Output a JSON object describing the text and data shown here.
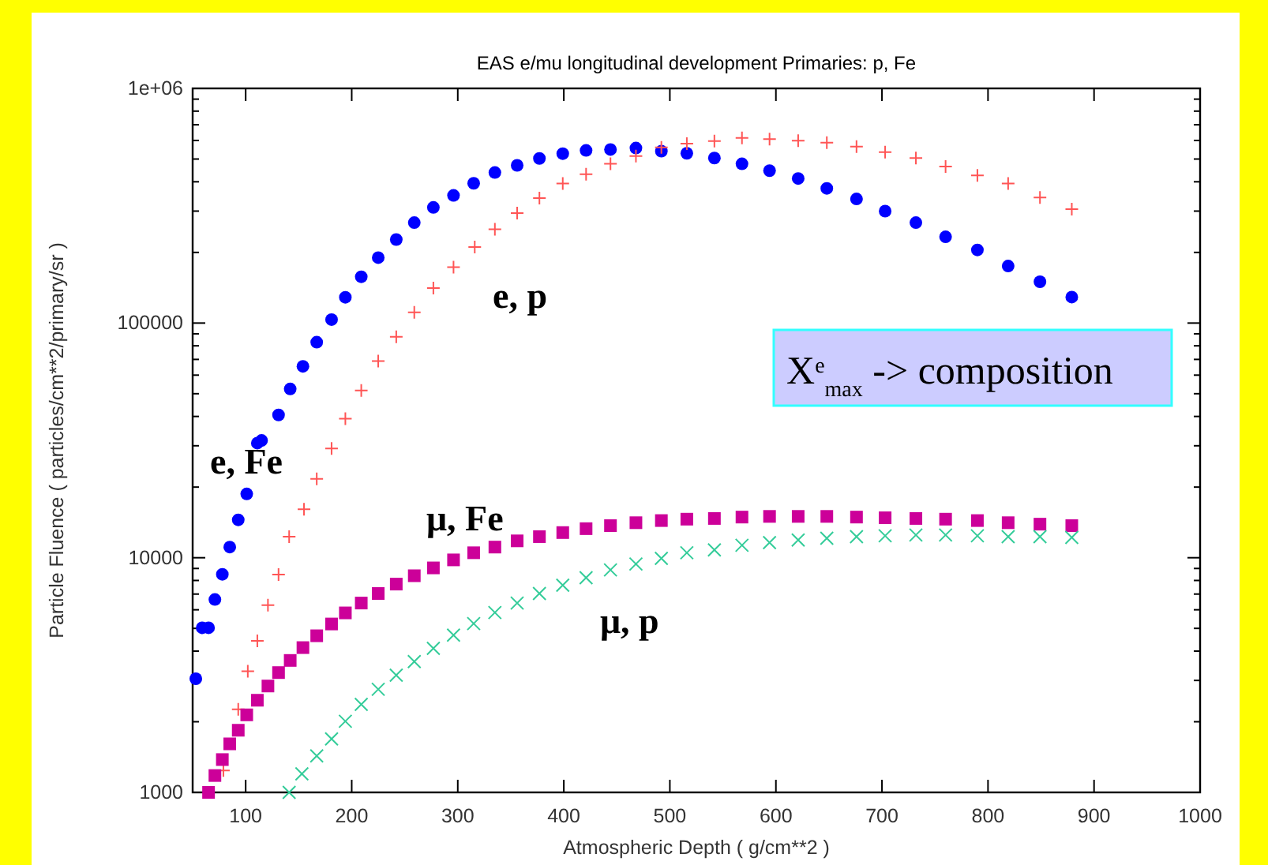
{
  "chart_data": {
    "type": "scatter",
    "title": "EAS e/mu longitudinal development  Primaries:  p, Fe",
    "xlabel": "Atmospheric Depth   ( g/cm**2 )",
    "ylabel": "Particle Fluence ( particles/cm**2/primary/sr )",
    "log": "y",
    "xlim": [
      50,
      1000
    ],
    "ylim": [
      1000,
      1000000
    ],
    "xticks": [
      100,
      200,
      300,
      400,
      500,
      600,
      700,
      800,
      900,
      1000
    ],
    "yticks": [
      {
        "value": 1000,
        "label": "1000"
      },
      {
        "value": 2000,
        "label": null
      },
      {
        "value": 3000,
        "label": null
      },
      {
        "value": 4000,
        "label": null
      },
      {
        "value": 5000,
        "label": null
      },
      {
        "value": 6000,
        "label": null
      },
      {
        "value": 7000,
        "label": null
      },
      {
        "value": 8000,
        "label": null
      },
      {
        "value": 9000,
        "label": null
      },
      {
        "value": 10000,
        "label": "10000"
      },
      {
        "value": 20000,
        "label": null
      },
      {
        "value": 30000,
        "label": null
      },
      {
        "value": 40000,
        "label": null
      },
      {
        "value": 50000,
        "label": null
      },
      {
        "value": 60000,
        "label": null
      },
      {
        "value": 70000,
        "label": null
      },
      {
        "value": 80000,
        "label": null
      },
      {
        "value": 90000,
        "label": null
      },
      {
        "value": 100000,
        "label": "100000"
      },
      {
        "value": 200000,
        "label": null
      },
      {
        "value": 300000,
        "label": null
      },
      {
        "value": 400000,
        "label": null
      },
      {
        "value": 500000,
        "label": null
      },
      {
        "value": 600000,
        "label": null
      },
      {
        "value": 700000,
        "label": null
      },
      {
        "value": 800000,
        "label": null
      },
      {
        "value": 900000,
        "label": null
      },
      {
        "value": 1000000,
        "label": "1e+06"
      }
    ],
    "annotations": [
      "X$^{e}$$_{max}$ -> composition"
    ],
    "series": [
      {
        "name": "e, Fe",
        "color": "#0000ff",
        "marker": "circle",
        "x": [
          53,
          59,
          65,
          71,
          78,
          85,
          93,
          101,
          111,
          115,
          131,
          142,
          154,
          167,
          181,
          194,
          209,
          225,
          242,
          259,
          277,
          296,
          315,
          335,
          356,
          377,
          399,
          421,
          444,
          468,
          492,
          516,
          542,
          568,
          594,
          621,
          648,
          676,
          703,
          732,
          760,
          790,
          819,
          849,
          879
        ],
        "values": [
          3050,
          5030,
          5030,
          6640,
          8500,
          11100,
          14500,
          18700,
          30800,
          31600,
          40600,
          52400,
          65400,
          82900,
          103500,
          128800,
          157500,
          190000,
          227000,
          268000,
          311000,
          350000,
          394000,
          438000,
          470000,
          503000,
          527000,
          544000,
          549000,
          557000,
          540000,
          529000,
          505000,
          477000,
          446000,
          413000,
          375000,
          338000,
          300000,
          268000,
          233000,
          205000,
          175000,
          150000,
          129000
        ]
      },
      {
        "name": "e, p",
        "color": "#ff5555",
        "marker": "cross",
        "x": [
          79,
          93,
          102,
          111,
          121,
          131,
          141,
          155,
          167,
          181,
          194,
          209,
          225,
          242,
          259,
          277,
          296,
          316,
          335,
          356,
          377,
          399,
          421,
          444,
          468,
          492,
          516,
          542,
          568,
          594,
          621,
          648,
          676,
          703,
          732,
          760,
          790,
          819,
          849,
          879
        ],
        "values": [
          1240,
          2260,
          3280,
          4420,
          6280,
          8470,
          12300,
          16100,
          21700,
          29200,
          39100,
          51600,
          68900,
          87400,
          111000,
          141000,
          173000,
          211000,
          251000,
          294000,
          341000,
          393000,
          431000,
          477000,
          515000,
          560000,
          581000,
          596000,
          615000,
          608000,
          599000,
          587000,
          565000,
          535000,
          505000,
          465000,
          426000,
          393000,
          343000,
          306000
        ]
      },
      {
        "name": "μ, Fe",
        "color": "#cc0099",
        "marker": "square",
        "x": [
          65,
          71,
          78,
          85,
          93,
          101,
          111,
          121,
          131,
          142,
          154,
          167,
          181,
          194,
          209,
          225,
          242,
          259,
          277,
          296,
          315,
          335,
          356,
          377,
          399,
          421,
          444,
          468,
          492,
          516,
          542,
          568,
          594,
          621,
          648,
          676,
          703,
          732,
          760,
          790,
          819,
          849,
          879
        ],
        "values": [
          1000,
          1180,
          1380,
          1610,
          1840,
          2140,
          2470,
          2840,
          3240,
          3650,
          4140,
          4650,
          5220,
          5820,
          6410,
          7040,
          7720,
          8380,
          9050,
          9790,
          10500,
          11100,
          11800,
          12300,
          12800,
          13300,
          13700,
          14100,
          14400,
          14600,
          14700,
          14900,
          15000,
          15000,
          15000,
          14900,
          14800,
          14700,
          14600,
          14400,
          14100,
          13900,
          13700
        ]
      },
      {
        "name": "μ, p",
        "color": "#33cc99",
        "marker": "x",
        "x": [
          141,
          153,
          167,
          181,
          194,
          209,
          225,
          242,
          259,
          277,
          296,
          315,
          335,
          356,
          377,
          399,
          421,
          444,
          468,
          492,
          516,
          542,
          568,
          594,
          621,
          648,
          676,
          703,
          732,
          760,
          790,
          819,
          849,
          879
        ],
        "values": [
          1000,
          1200,
          1430,
          1690,
          2010,
          2370,
          2750,
          3160,
          3610,
          4110,
          4680,
          5240,
          5840,
          6410,
          7040,
          7640,
          8220,
          8870,
          9400,
          9940,
          10500,
          10800,
          11300,
          11600,
          11900,
          12100,
          12300,
          12400,
          12500,
          12500,
          12400,
          12300,
          12300,
          12200
        ]
      }
    ]
  }
}
